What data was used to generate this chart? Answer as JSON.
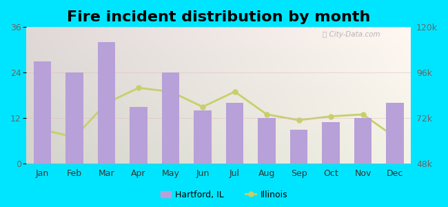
{
  "title": "Fire incident distribution by month",
  "months": [
    "Jan",
    "Feb",
    "Mar",
    "Apr",
    "May",
    "Jun",
    "Jul",
    "Aug",
    "Sep",
    "Oct",
    "Nov",
    "Dec"
  ],
  "hartford_values": [
    27,
    24,
    32,
    15,
    24,
    14,
    16,
    12,
    9,
    11,
    12,
    16
  ],
  "illinois_values": [
    66000,
    62000,
    80000,
    88000,
    86000,
    78000,
    86000,
    74000,
    71000,
    73000,
    74000,
    62000
  ],
  "bar_color": "#b8a0d8",
  "line_color": "#c8cf6a",
  "background_outer": "#00e5ff",
  "left_ylim": [
    0,
    36
  ],
  "left_yticks": [
    0,
    12,
    24,
    36
  ],
  "right_ylim": [
    48000,
    120000
  ],
  "right_yticks": [
    48000,
    72000,
    96000,
    120000
  ],
  "right_yticklabels": [
    "48k",
    "72k",
    "96k",
    "120k"
  ],
  "title_fontsize": 16,
  "watermark_text": "City-Data.com",
  "legend_hartford": "Hartford, IL",
  "legend_illinois": "Illinois"
}
